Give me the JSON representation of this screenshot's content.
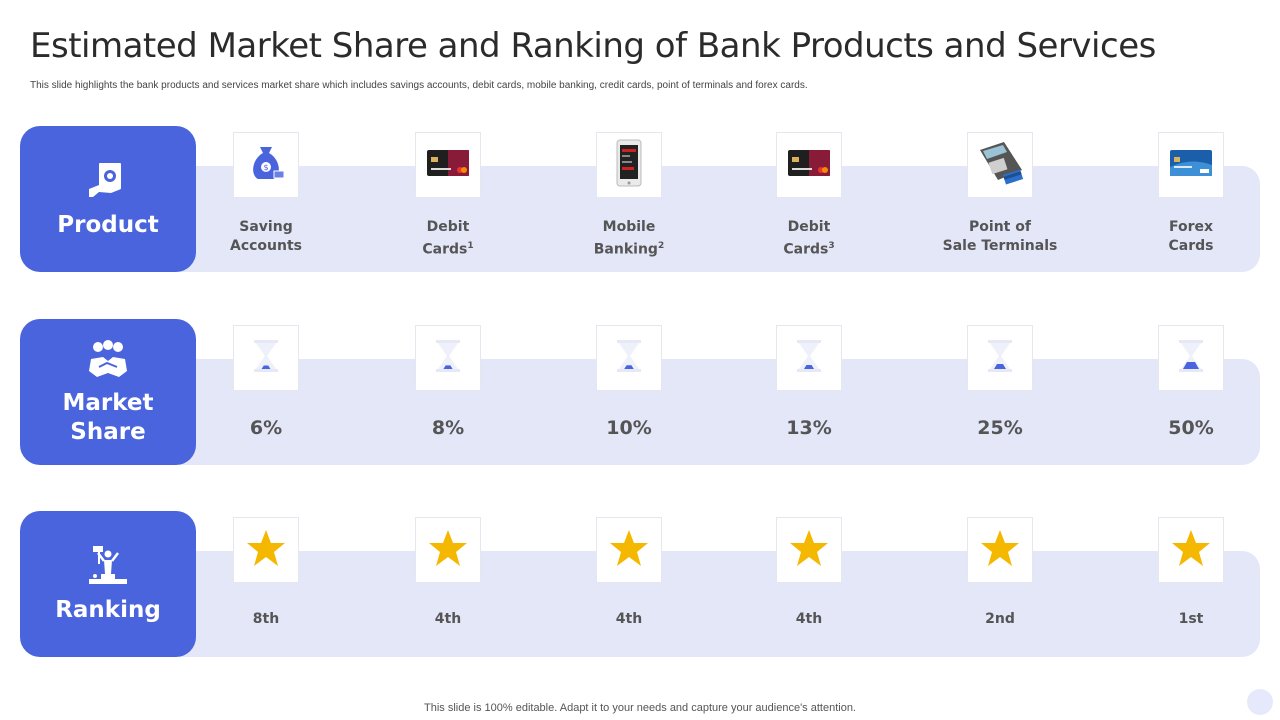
{
  "title": "Estimated Market Share and Ranking of Bank Products and Services",
  "subtitle": "This slide highlights the bank products and services market share which includes savings accounts, debit cards, mobile banking, credit cards, point of terminals and forex cards.",
  "footer": "This slide is 100% editable. Adapt it to your needs and capture your audience's attention.",
  "colors": {
    "accent": "#4a64dd",
    "band": "#e3e7f8",
    "star": "#f5b800"
  },
  "rows": {
    "product": {
      "label": "Product",
      "icon": "hand-gear-document-icon"
    },
    "market_share": {
      "label": "Market\nShare",
      "icon": "handshake-group-icon"
    },
    "ranking": {
      "label": "Ranking",
      "icon": "podium-winner-icon"
    }
  },
  "products": [
    {
      "line1": "Saving",
      "line2": "Accounts",
      "sup": "",
      "icon": "money-bag-icon",
      "share": "6%",
      "share_level": 0.06,
      "rank": "8th"
    },
    {
      "line1": "Debit",
      "line2": "Cards",
      "sup": "1",
      "icon": "debit-card-icon",
      "share": "8%",
      "share_level": 0.08,
      "rank": "4th"
    },
    {
      "line1": "Mobile",
      "line2": "Banking",
      "sup": "2",
      "icon": "mobile-phone-icon",
      "share": "10%",
      "share_level": 0.1,
      "rank": "4th"
    },
    {
      "line1": "Debit",
      "line2": "Cards",
      "sup": "3",
      "icon": "debit-card-icon",
      "share": "13%",
      "share_level": 0.13,
      "rank": "4th"
    },
    {
      "line1": "Point of",
      "line2": "Sale Terminals",
      "sup": "",
      "icon": "pos-terminal-icon",
      "share": "25%",
      "share_level": 0.25,
      "rank": "2nd"
    },
    {
      "line1": "Forex",
      "line2": "Cards",
      "sup": "",
      "icon": "forex-card-icon",
      "share": "50%",
      "share_level": 0.5,
      "rank": "1st"
    }
  ]
}
